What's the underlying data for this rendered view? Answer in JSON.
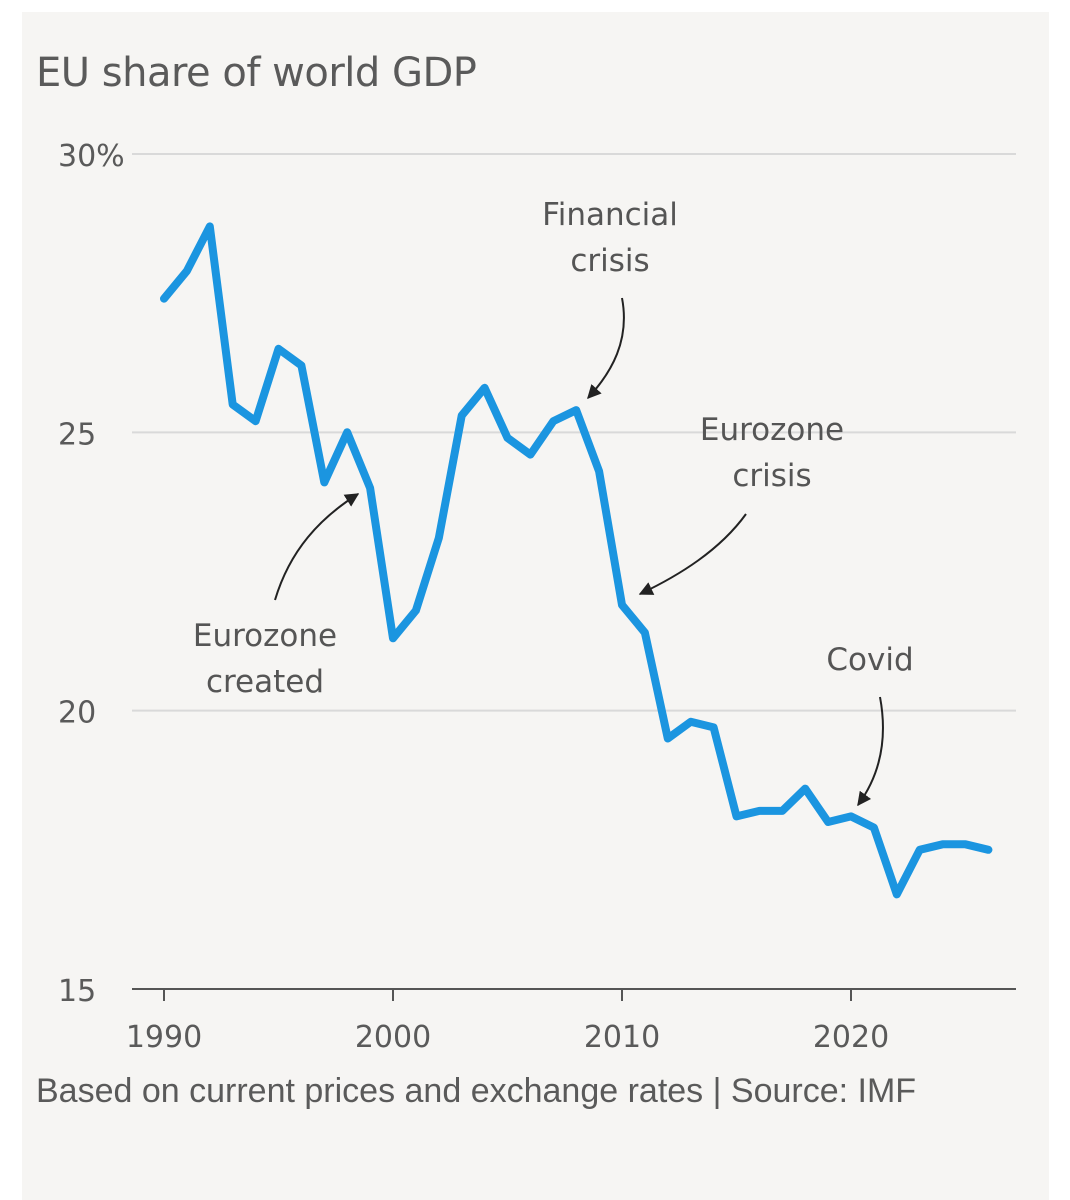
{
  "colors": {
    "line": "#1b95e0",
    "grid": "#d9d9d9",
    "text": "#5a5a5a",
    "card": "#f6f5f3"
  },
  "footer": {
    "note": "Based on current prices and exchange rates | Source: IMF"
  },
  "chart_data": {
    "type": "line",
    "title": "EU share of world GDP",
    "xlabel": "",
    "ylabel": "",
    "xlim": [
      1990,
      2026
    ],
    "ylim": [
      15,
      30
    ],
    "grid": true,
    "x_ticks": [
      {
        "value": 1990,
        "label": "1990"
      },
      {
        "value": 2000,
        "label": "2000"
      },
      {
        "value": 2010,
        "label": "2010"
      },
      {
        "value": 2020,
        "label": "2020"
      }
    ],
    "y_ticks": [
      {
        "value": 30,
        "label": "30%"
      },
      {
        "value": 25,
        "label": "25"
      },
      {
        "value": 20,
        "label": "20"
      },
      {
        "value": 15,
        "label": "15"
      }
    ],
    "series": [
      {
        "x": [
          1990,
          1991,
          1992,
          1993,
          1994,
          1995,
          1996,
          1997,
          1998,
          1999,
          2000,
          2001,
          2002,
          2003,
          2004,
          2005,
          2006,
          2007,
          2008,
          2009,
          2010,
          2011,
          2012,
          2013,
          2014,
          2015,
          2016,
          2017,
          2018,
          2019,
          2020,
          2021,
          2022,
          2023,
          2024,
          2025,
          2026
        ],
        "values": [
          27.4,
          27.9,
          28.7,
          25.5,
          25.2,
          26.5,
          26.2,
          24.1,
          25.0,
          24.0,
          21.3,
          21.8,
          23.1,
          25.3,
          25.8,
          24.9,
          24.6,
          25.2,
          25.4,
          24.3,
          21.9,
          21.4,
          19.5,
          19.8,
          19.7,
          18.1,
          18.2,
          18.2,
          18.6,
          18.0,
          18.1,
          17.9,
          16.7,
          17.5,
          17.6,
          17.6,
          17.5
        ]
      }
    ],
    "annotations": [
      {
        "lines": [
          "Financial",
          "crisis"
        ],
        "target": [
          2008,
          25.4
        ]
      },
      {
        "lines": [
          "Eurozone",
          "crisis"
        ],
        "target": [
          2010,
          21.9
        ]
      },
      {
        "lines": [
          "Eurozone",
          "created"
        ],
        "target": [
          1998.7,
          24.2
        ]
      },
      {
        "lines": [
          "Covid"
        ],
        "target": [
          2020.3,
          18.1
        ]
      }
    ]
  }
}
